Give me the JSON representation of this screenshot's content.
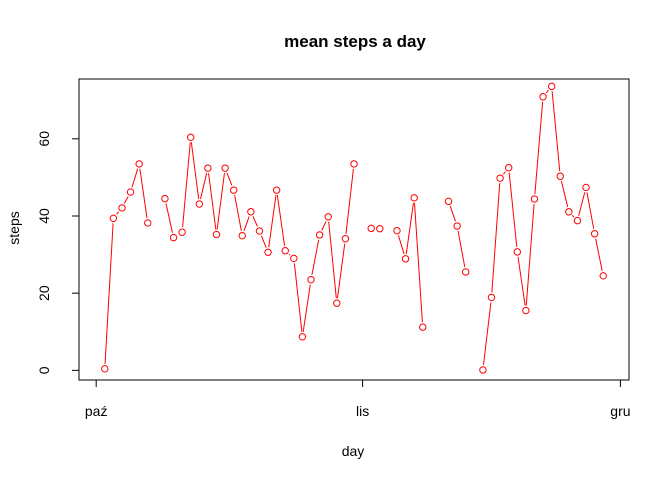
{
  "chart_data": {
    "type": "line",
    "title": "mean steps a day",
    "xlabel": "day",
    "ylabel": "steps",
    "xlim": [
      "2012-09-29",
      "2012-12-02"
    ],
    "ylim": [
      -2.5,
      75.5
    ],
    "x_ticks": [
      {
        "date": "2012-10-01",
        "label": "paź"
      },
      {
        "date": "2012-11-01",
        "label": "lis"
      },
      {
        "date": "2012-12-01",
        "label": "gru"
      }
    ],
    "y_ticks": [
      0,
      20,
      40,
      60
    ],
    "grid": false,
    "legend": "none",
    "colors": {
      "series": "#ff0000",
      "axis": "#000000"
    },
    "series": [
      {
        "dates": [
          "2012-10-02",
          "2012-10-03",
          "2012-10-04",
          "2012-10-05",
          "2012-10-06",
          "2012-10-07",
          "2012-10-09",
          "2012-10-10",
          "2012-10-11",
          "2012-10-12",
          "2012-10-13",
          "2012-10-14",
          "2012-10-15",
          "2012-10-16",
          "2012-10-17",
          "2012-10-18",
          "2012-10-19",
          "2012-10-20",
          "2012-10-21",
          "2012-10-22",
          "2012-10-23",
          "2012-10-24",
          "2012-10-25",
          "2012-10-26",
          "2012-10-27",
          "2012-10-28",
          "2012-10-29",
          "2012-10-30",
          "2012-10-31",
          "2012-11-02",
          "2012-11-03",
          "2012-11-05",
          "2012-11-06",
          "2012-11-07",
          "2012-11-08",
          "2012-11-11",
          "2012-11-12",
          "2012-11-13",
          "2012-11-15",
          "2012-11-16",
          "2012-11-17",
          "2012-11-18",
          "2012-11-19",
          "2012-11-20",
          "2012-11-21",
          "2012-11-22",
          "2012-11-23",
          "2012-11-24",
          "2012-11-25",
          "2012-11-26",
          "2012-11-27",
          "2012-11-28",
          "2012-11-29"
        ],
        "values": [
          0.4,
          39.4,
          42.1,
          46.2,
          53.5,
          38.2,
          44.5,
          34.4,
          35.8,
          60.4,
          43.1,
          52.4,
          35.2,
          52.4,
          46.7,
          34.9,
          41.1,
          36.1,
          30.6,
          46.7,
          31.0,
          29.0,
          8.7,
          23.5,
          35.1,
          39.8,
          17.4,
          34.1,
          53.5,
          36.8,
          36.7,
          36.2,
          28.9,
          44.7,
          11.2,
          43.8,
          37.4,
          25.5,
          0.1,
          18.9,
          49.8,
          52.5,
          30.7,
          15.5,
          44.4,
          70.9,
          73.6,
          50.3,
          41.1,
          38.8,
          47.4,
          35.4,
          24.5
        ]
      }
    ]
  }
}
